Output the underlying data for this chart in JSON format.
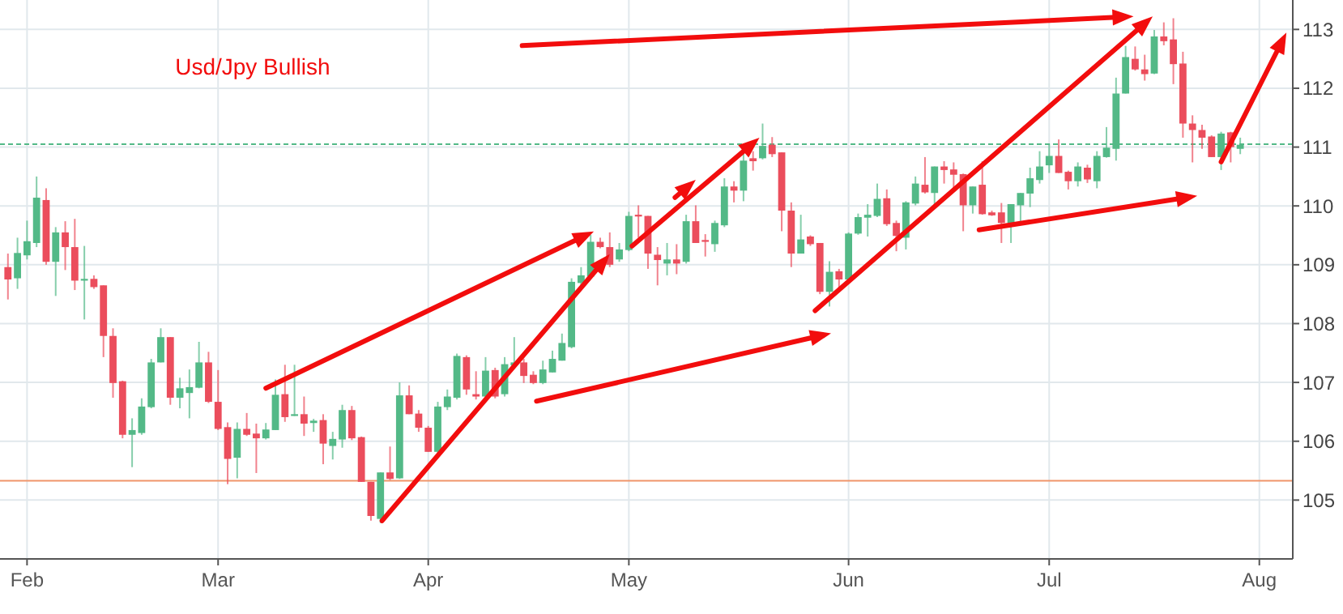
{
  "chart_data": {
    "type": "candlestick",
    "title": "Usd/Jpy Bullish",
    "categories": [
      null,
      null,
      "Feb",
      null,
      null,
      null,
      null,
      null,
      null,
      null,
      null,
      null,
      null,
      null,
      null,
      null,
      null,
      null,
      null,
      null,
      null,
      null,
      "Mar",
      null,
      null,
      null,
      null,
      null,
      null,
      null,
      null,
      null,
      null,
      null,
      null,
      null,
      null,
      null,
      null,
      null,
      null,
      null,
      null,
      null,
      "Apr",
      null,
      null,
      null,
      null,
      null,
      null,
      null,
      null,
      null,
      null,
      null,
      null,
      null,
      null,
      null,
      null,
      null,
      null,
      null,
      null,
      "May",
      null,
      null,
      null,
      null,
      null,
      null,
      null,
      null,
      null,
      null,
      null,
      null,
      null,
      null,
      null,
      null,
      null,
      null,
      null,
      null,
      null,
      null,
      "Jun",
      null,
      null,
      null,
      null,
      null,
      null,
      null,
      null,
      null,
      null,
      null,
      null,
      null,
      null,
      null,
      null,
      null,
      null,
      null,
      null,
      "Jul",
      null,
      null,
      null,
      null,
      null,
      null,
      null,
      null,
      null,
      null,
      null,
      null,
      null,
      null,
      null,
      null,
      null,
      null,
      null,
      null,
      null,
      "Aug",
      null,
      null,
      null
    ],
    "ohlc": [
      [
        108.96,
        109.19,
        108.41,
        108.75
      ],
      [
        108.77,
        109.46,
        108.59,
        109.2
      ],
      [
        109.16,
        109.75,
        109.09,
        109.4
      ],
      [
        109.37,
        110.5,
        109.3,
        110.14
      ],
      [
        110.1,
        110.3,
        109.0,
        109.05
      ],
      [
        109.05,
        109.64,
        108.47,
        109.55
      ],
      [
        109.55,
        109.74,
        108.91,
        109.3
      ],
      [
        109.3,
        109.78,
        108.57,
        108.73
      ],
      [
        108.73,
        109.32,
        108.07,
        108.76
      ],
      [
        108.76,
        108.82,
        108.59,
        108.62
      ],
      [
        108.65,
        108.65,
        107.43,
        107.79
      ],
      [
        107.79,
        107.92,
        106.74,
        106.99
      ],
      [
        107.02,
        107.03,
        106.05,
        106.11
      ],
      [
        106.11,
        106.39,
        105.56,
        106.19
      ],
      [
        106.14,
        106.73,
        106.11,
        106.59
      ],
      [
        106.58,
        107.4,
        106.56,
        107.34
      ],
      [
        107.34,
        107.92,
        107.34,
        107.77
      ],
      [
        107.77,
        107.77,
        106.62,
        106.74
      ],
      [
        106.74,
        107.08,
        106.56,
        106.9
      ],
      [
        106.82,
        107.22,
        106.39,
        106.92
      ],
      [
        106.91,
        107.69,
        106.9,
        107.34
      ],
      [
        107.34,
        107.52,
        106.65,
        106.67
      ],
      [
        106.67,
        107.21,
        106.19,
        106.21
      ],
      [
        106.24,
        106.32,
        105.27,
        105.7
      ],
      [
        105.72,
        106.32,
        105.37,
        106.21
      ],
      [
        106.21,
        106.48,
        106.09,
        106.11
      ],
      [
        106.13,
        106.3,
        105.46,
        106.05
      ],
      [
        106.05,
        106.31,
        106.03,
        106.2
      ],
      [
        106.19,
        107.05,
        106.19,
        106.79
      ],
      [
        106.8,
        107.3,
        106.33,
        106.41
      ],
      [
        106.43,
        107.3,
        106.43,
        106.46
      ],
      [
        106.46,
        106.76,
        106.09,
        106.3
      ],
      [
        106.31,
        106.38,
        106.16,
        106.35
      ],
      [
        106.36,
        106.46,
        105.61,
        105.96
      ],
      [
        105.92,
        106.16,
        105.69,
        106.04
      ],
      [
        106.03,
        106.62,
        105.89,
        106.53
      ],
      [
        106.53,
        106.6,
        106.02,
        106.05
      ],
      [
        106.07,
        106.08,
        105.31,
        105.31
      ],
      [
        105.31,
        105.31,
        104.65,
        104.73
      ],
      [
        104.68,
        105.47,
        104.61,
        105.47
      ],
      [
        105.47,
        105.91,
        105.34,
        105.36
      ],
      [
        105.37,
        107.0,
        105.36,
        106.78
      ],
      [
        106.78,
        106.95,
        106.46,
        106.46
      ],
      [
        106.47,
        106.53,
        106.16,
        106.23
      ],
      [
        106.23,
        106.26,
        105.82,
        105.82
      ],
      [
        105.82,
        106.67,
        105.8,
        106.59
      ],
      [
        106.58,
        106.88,
        106.53,
        106.76
      ],
      [
        106.74,
        107.49,
        106.71,
        107.45
      ],
      [
        107.43,
        107.46,
        106.79,
        106.88
      ],
      [
        106.8,
        107.19,
        106.71,
        106.76
      ],
      [
        106.76,
        107.43,
        106.67,
        107.2
      ],
      [
        107.21,
        107.25,
        106.73,
        106.76
      ],
      [
        106.8,
        107.43,
        106.76,
        107.31
      ],
      [
        107.29,
        107.77,
        107.28,
        107.34
      ],
      [
        107.34,
        107.4,
        106.99,
        107.11
      ],
      [
        107.13,
        107.19,
        106.97,
        106.99
      ],
      [
        106.99,
        107.37,
        106.97,
        107.22
      ],
      [
        107.17,
        107.54,
        107.17,
        107.4
      ],
      [
        107.37,
        107.83,
        107.37,
        107.67
      ],
      [
        107.6,
        108.77,
        107.58,
        108.71
      ],
      [
        108.69,
        108.96,
        108.64,
        108.82
      ],
      [
        108.8,
        109.51,
        108.8,
        109.39
      ],
      [
        109.39,
        109.46,
        109.28,
        109.3
      ],
      [
        109.3,
        109.55,
        108.96,
        109.0
      ],
      [
        109.09,
        109.37,
        109.05,
        109.26
      ],
      [
        109.25,
        109.9,
        109.23,
        109.83
      ],
      [
        109.85,
        110.01,
        109.46,
        109.82
      ],
      [
        109.83,
        109.83,
        108.93,
        109.19
      ],
      [
        109.17,
        109.3,
        108.65,
        109.08
      ],
      [
        109.02,
        109.37,
        108.82,
        109.09
      ],
      [
        109.09,
        109.35,
        108.84,
        109.02
      ],
      [
        109.05,
        109.85,
        109.02,
        109.74
      ],
      [
        109.74,
        110.01,
        109.37,
        109.37
      ],
      [
        109.42,
        109.52,
        109.14,
        109.39
      ],
      [
        109.35,
        109.75,
        109.22,
        109.71
      ],
      [
        109.67,
        110.47,
        109.64,
        110.33
      ],
      [
        110.33,
        110.42,
        110.06,
        110.26
      ],
      [
        110.26,
        110.9,
        110.08,
        110.77
      ],
      [
        110.81,
        110.93,
        110.6,
        110.76
      ],
      [
        110.81,
        111.4,
        110.79,
        111.02
      ],
      [
        111.04,
        111.17,
        110.83,
        110.88
      ],
      [
        110.91,
        110.91,
        109.57,
        109.92
      ],
      [
        109.92,
        110.06,
        108.96,
        109.19
      ],
      [
        109.19,
        109.85,
        109.19,
        109.43
      ],
      [
        109.48,
        109.5,
        109.32,
        109.35
      ],
      [
        109.37,
        109.37,
        108.5,
        108.54
      ],
      [
        108.54,
        109.06,
        108.29,
        108.88
      ],
      [
        108.89,
        108.93,
        108.56,
        108.75
      ],
      [
        108.75,
        109.55,
        108.73,
        109.53
      ],
      [
        109.53,
        109.87,
        109.51,
        109.81
      ],
      [
        109.8,
        110.03,
        109.48,
        109.85
      ],
      [
        109.83,
        110.38,
        109.81,
        110.12
      ],
      [
        110.13,
        110.28,
        109.66,
        109.69
      ],
      [
        109.71,
        109.75,
        109.23,
        109.49
      ],
      [
        109.46,
        110.08,
        109.26,
        110.06
      ],
      [
        110.04,
        110.5,
        110.01,
        110.38
      ],
      [
        110.36,
        110.83,
        110.21,
        110.23
      ],
      [
        110.22,
        110.67,
        110.01,
        110.67
      ],
      [
        110.67,
        110.76,
        110.38,
        110.61
      ],
      [
        110.62,
        110.74,
        110.3,
        110.53
      ],
      [
        110.54,
        110.55,
        109.57,
        110.01
      ],
      [
        110.01,
        110.33,
        109.87,
        110.33
      ],
      [
        110.36,
        110.76,
        109.85,
        109.86
      ],
      [
        109.89,
        109.92,
        109.83,
        109.84
      ],
      [
        109.89,
        110.05,
        109.37,
        109.71
      ],
      [
        109.71,
        110.03,
        109.37,
        110.03
      ],
      [
        110.01,
        110.22,
        109.69,
        110.22
      ],
      [
        110.21,
        110.65,
        109.98,
        110.47
      ],
      [
        110.44,
        110.93,
        110.38,
        110.67
      ],
      [
        110.69,
        111.06,
        110.56,
        110.85
      ],
      [
        110.85,
        111.13,
        110.56,
        110.56
      ],
      [
        110.58,
        110.6,
        110.28,
        110.42
      ],
      [
        110.42,
        110.74,
        110.33,
        110.67
      ],
      [
        110.65,
        110.7,
        110.39,
        110.45
      ],
      [
        110.42,
        110.93,
        110.3,
        110.85
      ],
      [
        110.83,
        111.34,
        110.82,
        110.99
      ],
      [
        110.97,
        112.18,
        110.77,
        111.91
      ],
      [
        111.91,
        112.72,
        111.91,
        112.53
      ],
      [
        112.5,
        112.71,
        112.3,
        112.32
      ],
      [
        112.32,
        112.57,
        112.13,
        112.24
      ],
      [
        112.25,
        112.99,
        112.24,
        112.88
      ],
      [
        112.88,
        113.12,
        112.73,
        112.8
      ],
      [
        112.83,
        113.19,
        112.07,
        112.41
      ],
      [
        112.42,
        112.62,
        111.16,
        111.4
      ],
      [
        111.4,
        111.54,
        110.74,
        111.29
      ],
      [
        111.29,
        111.38,
        110.97,
        111.16
      ],
      [
        111.18,
        111.2,
        110.83,
        110.83
      ],
      [
        110.83,
        111.26,
        110.61,
        111.23
      ],
      [
        111.25,
        111.26,
        110.74,
        111.0
      ],
      [
        110.97,
        111.16,
        110.88,
        111.04
      ],
      null,
      null,
      null,
      null,
      null
    ],
    "colors": [
      "#eb4d5c",
      "#53b987",
      "#53b987",
      "#53b987",
      "#eb4d5c",
      "#53b987",
      "#eb4d5c",
      "#eb4d5c",
      "#53b987",
      "#eb4d5c",
      "#eb4d5c",
      "#eb4d5c",
      "#eb4d5c",
      "#53b987",
      "#53b987",
      "#53b987",
      "#53b987",
      "#eb4d5c",
      "#53b987",
      "#53b987",
      "#53b987",
      "#eb4d5c",
      "#eb4d5c",
      "#eb4d5c",
      "#53b987",
      "#eb4d5c",
      "#eb4d5c",
      "#53b987",
      "#53b987",
      "#eb4d5c",
      "#53b987",
      "#eb4d5c",
      "#53b987",
      "#eb4d5c",
      "#53b987",
      "#53b987",
      "#eb4d5c",
      "#eb4d5c",
      "#eb4d5c",
      "#53b987",
      "#eb4d5c",
      "#53b987",
      "#eb4d5c",
      "#eb4d5c",
      "#eb4d5c",
      "#53b987",
      "#53b987",
      "#53b987",
      "#eb4d5c",
      "#eb4d5c",
      "#53b987",
      "#eb4d5c",
      "#53b987",
      "#53b987",
      "#eb4d5c",
      "#eb4d5c",
      "#53b987",
      "#53b987",
      "#53b987",
      "#53b987",
      "#53b987",
      "#53b987",
      "#eb4d5c",
      "#eb4d5c",
      "#53b987",
      "#53b987",
      "#eb4d5c",
      "#eb4d5c",
      "#eb4d5c",
      "#53b987",
      "#eb4d5c",
      "#53b987",
      "#eb4d5c",
      "#eb4d5c",
      "#53b987",
      "#53b987",
      "#eb4d5c",
      "#53b987",
      "#eb4d5c",
      "#53b987",
      "#eb4d5c",
      "#eb4d5c",
      "#eb4d5c",
      "#53b987",
      "#eb4d5c",
      "#eb4d5c",
      "#53b987",
      "#eb4d5c",
      "#53b987",
      "#53b987",
      "#53b987",
      "#53b987",
      "#eb4d5c",
      "#eb4d5c",
      "#53b987",
      "#53b987",
      "#eb4d5c",
      "#53b987",
      "#eb4d5c",
      "#eb4d5c",
      "#eb4d5c",
      "#53b987",
      "#eb4d5c",
      "#eb4d5c",
      "#eb4d5c",
      "#53b987",
      "#53b987",
      "#53b987",
      "#53b987",
      "#53b987",
      "#eb4d5c",
      "#eb4d5c",
      "#53b987",
      "#eb4d5c",
      "#53b987",
      "#53b987",
      "#53b987",
      "#53b987",
      "#eb4d5c",
      "#eb4d5c",
      "#53b987",
      "#eb4d5c",
      "#eb4d5c",
      "#eb4d5c",
      "#eb4d5c",
      "#eb4d5c",
      "#eb4d5c",
      "#53b987",
      "#eb4d5c",
      "#53b987",
      null,
      null,
      null,
      null,
      null
    ],
    "ylim": [
      104.0,
      113.5
    ],
    "yticks": [
      105,
      106,
      107,
      108,
      109,
      110,
      111,
      112,
      113
    ],
    "grid": true,
    "ref_lines": [
      {
        "axis": "y",
        "value": 111.05,
        "color": "#53b987",
        "line_style": "dashed"
      },
      {
        "axis": "y",
        "value": 105.33,
        "color": "#f0956a",
        "line_style": "solid"
      }
    ]
  }
}
